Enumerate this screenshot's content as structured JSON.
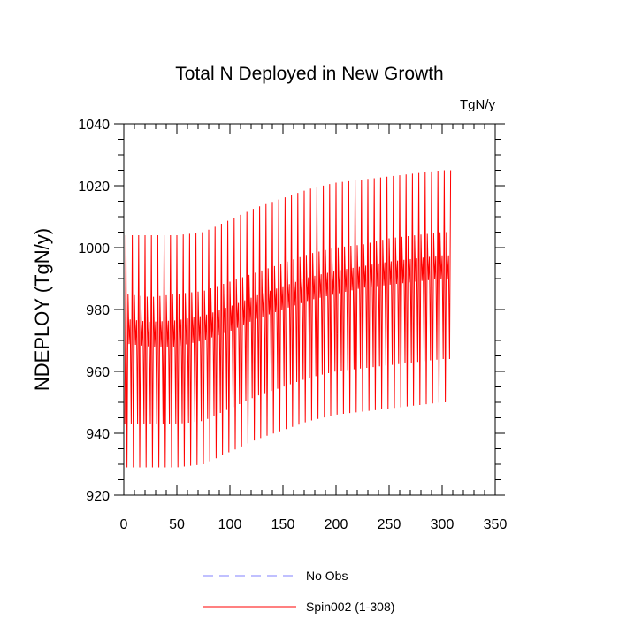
{
  "chart_data": {
    "type": "line",
    "title": "Total N Deployed in New Growth",
    "units": "TgN/y",
    "ylabel": "NDEPLOY  (TgN/y)",
    "xlabel": "",
    "xlim": [
      0,
      350
    ],
    "ylim": [
      920,
      1040
    ],
    "xticks": [
      0,
      50,
      100,
      150,
      200,
      250,
      300,
      350
    ],
    "yticks": [
      920,
      940,
      960,
      980,
      1000,
      1020,
      1040
    ],
    "x_tick_labels": [
      "0",
      "50",
      "100",
      "150",
      "200",
      "250",
      "300",
      "350"
    ],
    "y_tick_labels": [
      "920",
      "940",
      "960",
      "980",
      "1000",
      "1020",
      "1040"
    ],
    "series": [
      {
        "name": "No Obs",
        "style": "dashed",
        "color": "#8080ff",
        "values": []
      },
      {
        "name": "Spin002 (1-308)",
        "style": "solid",
        "color": "#ff0000",
        "x_range": [
          1,
          308
        ],
        "cycle_period_years": 6,
        "envelope_points": [
          {
            "x": 1,
            "max": 1004,
            "upper": 985,
            "lower": 969,
            "min": 929
          },
          {
            "x": 25,
            "max": 1004,
            "upper": 984,
            "lower": 968,
            "min": 929
          },
          {
            "x": 50,
            "max": 1004,
            "upper": 985,
            "lower": 968,
            "min": 929
          },
          {
            "x": 75,
            "max": 1005,
            "upper": 986,
            "lower": 970,
            "min": 930
          },
          {
            "x": 100,
            "max": 1009,
            "upper": 989,
            "lower": 973,
            "min": 934
          },
          {
            "x": 125,
            "max": 1013,
            "upper": 992,
            "lower": 977,
            "min": 938
          },
          {
            "x": 150,
            "max": 1016,
            "upper": 995,
            "lower": 980,
            "min": 941
          },
          {
            "x": 175,
            "max": 1019,
            "upper": 998,
            "lower": 983,
            "min": 944
          },
          {
            "x": 200,
            "max": 1021,
            "upper": 1000,
            "lower": 985,
            "min": 946
          },
          {
            "x": 225,
            "max": 1022,
            "upper": 1001,
            "lower": 987,
            "min": 947
          },
          {
            "x": 250,
            "max": 1023,
            "upper": 1003,
            "lower": 988,
            "min": 948
          },
          {
            "x": 275,
            "max": 1024,
            "upper": 1004,
            "lower": 989,
            "min": 949
          },
          {
            "x": 300,
            "max": 1025,
            "upper": 1005,
            "lower": 990,
            "min": 950
          },
          {
            "x": 308,
            "max": 1025,
            "upper": 1005,
            "lower": 990,
            "min": 950
          }
        ]
      }
    ],
    "legend": "bottom-center"
  }
}
